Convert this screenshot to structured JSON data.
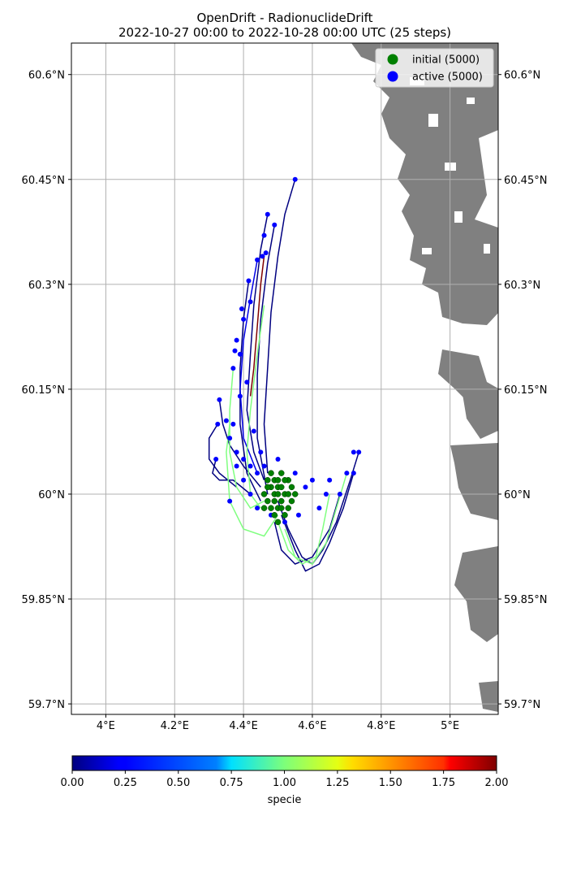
{
  "chart_data": {
    "type": "scatter",
    "title_line1": "OpenDrift - RadionuclideDrift",
    "title_line2": "2022-10-27 00:00 to 2022-10-28 00:00 UTC (25 steps)",
    "xlabel": "",
    "ylabel": "",
    "xlim": [
      3.9,
      5.14
    ],
    "ylim": [
      59.685,
      60.645
    ],
    "grid": true,
    "x_ticks": [
      {
        "value": 4.0,
        "label": "4°E"
      },
      {
        "value": 4.2,
        "label": "4.2°E"
      },
      {
        "value": 4.4,
        "label": "4.4°E"
      },
      {
        "value": 4.6,
        "label": "4.6°E"
      },
      {
        "value": 4.8,
        "label": "4.8°E"
      },
      {
        "value": 5.0,
        "label": "5°E"
      }
    ],
    "y_ticks": [
      {
        "value": 60.6,
        "label": "60.6°N"
      },
      {
        "value": 60.45,
        "label": "60.45°N"
      },
      {
        "value": 60.3,
        "label": "60.3°N"
      },
      {
        "value": 60.15,
        "label": "60.15°N"
      },
      {
        "value": 60.0,
        "label": "60°N"
      },
      {
        "value": 59.85,
        "label": "59.85°N"
      },
      {
        "value": 59.7,
        "label": "59.7°N"
      }
    ],
    "legend": {
      "placement": "top-right",
      "entries": [
        {
          "label": "initial (5000)",
          "color": "#008000"
        },
        {
          "label": "active (5000)",
          "color": "#0000ff"
        }
      ]
    },
    "series": [
      {
        "name": "initial (5000)",
        "color": "#008000",
        "points": [
          [
            4.49,
            60.0
          ],
          [
            4.5,
            60.01
          ],
          [
            4.51,
            59.99
          ],
          [
            4.48,
            60.01
          ],
          [
            4.52,
            60.0
          ],
          [
            4.5,
            59.98
          ],
          [
            4.47,
            59.99
          ],
          [
            4.53,
            60.02
          ],
          [
            4.49,
            60.02
          ],
          [
            4.51,
            60.01
          ],
          [
            4.46,
            60.0
          ],
          [
            4.54,
            59.99
          ],
          [
            4.5,
            60.02
          ],
          [
            4.48,
            59.98
          ],
          [
            4.52,
            59.97
          ],
          [
            4.49,
            59.97
          ],
          [
            4.53,
            60.0
          ],
          [
            4.47,
            60.02
          ],
          [
            4.51,
            60.03
          ],
          [
            4.5,
            59.96
          ],
          [
            4.54,
            60.01
          ],
          [
            4.46,
            59.98
          ],
          [
            4.48,
            60.03
          ],
          [
            4.52,
            60.02
          ],
          [
            4.55,
            60.0
          ],
          [
            4.5,
            60.0
          ],
          [
            4.49,
            59.99
          ],
          [
            4.51,
            59.98
          ],
          [
            4.47,
            60.01
          ],
          [
            4.53,
            59.98
          ]
        ]
      },
      {
        "name": "active (5000)",
        "color": "#0000ff",
        "points": [
          [
            4.55,
            60.45
          ],
          [
            4.47,
            60.4
          ],
          [
            4.49,
            60.385
          ],
          [
            4.46,
            60.37
          ],
          [
            4.465,
            60.345
          ],
          [
            4.44,
            60.335
          ],
          [
            4.455,
            60.34
          ],
          [
            4.415,
            60.305
          ],
          [
            4.42,
            60.275
          ],
          [
            4.395,
            60.265
          ],
          [
            4.4,
            60.25
          ],
          [
            4.38,
            60.22
          ],
          [
            4.375,
            60.205
          ],
          [
            4.39,
            60.2
          ],
          [
            4.37,
            60.18
          ],
          [
            4.33,
            60.135
          ],
          [
            4.325,
            60.1
          ],
          [
            4.35,
            60.105
          ],
          [
            4.32,
            60.05
          ],
          [
            4.36,
            60.08
          ],
          [
            4.38,
            60.06
          ],
          [
            4.4,
            60.05
          ],
          [
            4.42,
            60.04
          ],
          [
            4.44,
            60.03
          ],
          [
            4.46,
            60.04
          ],
          [
            4.5,
            60.05
          ],
          [
            4.55,
            60.03
          ],
          [
            4.6,
            60.02
          ],
          [
            4.65,
            60.02
          ],
          [
            4.7,
            60.03
          ],
          [
            4.72,
            60.06
          ],
          [
            4.735,
            60.06
          ],
          [
            4.72,
            60.03
          ],
          [
            4.68,
            60.0
          ],
          [
            4.62,
            59.98
          ],
          [
            4.56,
            59.97
          ],
          [
            4.52,
            59.96
          ],
          [
            4.48,
            59.97
          ],
          [
            4.44,
            59.98
          ],
          [
            4.42,
            60.0
          ],
          [
            4.4,
            60.02
          ],
          [
            4.38,
            60.04
          ],
          [
            4.37,
            60.1
          ],
          [
            4.39,
            60.14
          ],
          [
            4.41,
            60.16
          ],
          [
            4.36,
            59.99
          ],
          [
            4.58,
            60.01
          ],
          [
            4.64,
            60.0
          ],
          [
            4.45,
            60.06
          ],
          [
            4.43,
            60.09
          ]
        ]
      }
    ],
    "trajectories": [
      {
        "specie": 0.0,
        "path": [
          [
            4.55,
            60.45
          ],
          [
            4.52,
            60.4
          ],
          [
            4.5,
            60.34
          ],
          [
            4.48,
            60.26
          ],
          [
            4.47,
            60.18
          ],
          [
            4.46,
            60.1
          ],
          [
            4.47,
            60.03
          ]
        ]
      },
      {
        "specie": 0.0,
        "path": [
          [
            4.47,
            60.4
          ],
          [
            4.45,
            60.35
          ],
          [
            4.43,
            60.27
          ],
          [
            4.42,
            60.2
          ],
          [
            4.41,
            60.12
          ],
          [
            4.43,
            60.06
          ],
          [
            4.46,
            60.02
          ]
        ]
      },
      {
        "specie": 0.0,
        "path": [
          [
            4.49,
            60.385
          ],
          [
            4.47,
            60.33
          ],
          [
            4.45,
            60.25
          ],
          [
            4.44,
            60.17
          ],
          [
            4.44,
            60.08
          ],
          [
            4.47,
            60.0
          ]
        ]
      },
      {
        "specie": 0.0,
        "path": [
          [
            4.415,
            60.305
          ],
          [
            4.4,
            60.25
          ],
          [
            4.39,
            60.18
          ],
          [
            4.39,
            60.1
          ],
          [
            4.41,
            60.03
          ],
          [
            4.45,
            59.99
          ]
        ]
      },
      {
        "specie": 0.2,
        "path": [
          [
            4.44,
            60.335
          ],
          [
            4.42,
            60.28
          ],
          [
            4.4,
            60.22
          ],
          [
            4.39,
            60.15
          ],
          [
            4.4,
            60.08
          ],
          [
            4.44,
            60.03
          ]
        ]
      },
      {
        "specie": 0.0,
        "path": [
          [
            4.33,
            60.135
          ],
          [
            4.34,
            60.1
          ],
          [
            4.36,
            60.07
          ],
          [
            4.4,
            60.04
          ],
          [
            4.45,
            60.01
          ]
        ]
      },
      {
        "specie": 0.0,
        "path": [
          [
            4.32,
            60.05
          ],
          [
            4.31,
            60.03
          ],
          [
            4.33,
            60.02
          ],
          [
            4.37,
            60.02
          ],
          [
            4.42,
            60.0
          ]
        ]
      },
      {
        "specie": 0.0,
        "path": [
          [
            4.325,
            60.1
          ],
          [
            4.3,
            60.08
          ],
          [
            4.3,
            60.05
          ],
          [
            4.33,
            60.03
          ],
          [
            4.38,
            60.01
          ]
        ]
      },
      {
        "specie": 0.0,
        "path": [
          [
            4.735,
            60.06
          ],
          [
            4.71,
            60.02
          ],
          [
            4.67,
            59.96
          ],
          [
            4.63,
            59.92
          ],
          [
            4.6,
            59.9
          ],
          [
            4.57,
            59.91
          ],
          [
            4.53,
            59.95
          ],
          [
            4.5,
            59.99
          ]
        ]
      },
      {
        "specie": 0.0,
        "path": [
          [
            4.72,
            60.03
          ],
          [
            4.69,
            59.98
          ],
          [
            4.65,
            59.93
          ],
          [
            4.62,
            59.9
          ],
          [
            4.58,
            59.89
          ],
          [
            4.55,
            59.92
          ],
          [
            4.51,
            59.97
          ]
        ]
      },
      {
        "specie": 0.0,
        "path": [
          [
            4.68,
            60.0
          ],
          [
            4.65,
            59.95
          ],
          [
            4.6,
            59.91
          ],
          [
            4.55,
            59.9
          ],
          [
            4.51,
            59.92
          ],
          [
            4.49,
            59.96
          ]
        ]
      },
      {
        "specie": 1.0,
        "path": [
          [
            4.46,
            60.27
          ],
          [
            4.44,
            60.2
          ],
          [
            4.42,
            60.12
          ],
          [
            4.41,
            60.06
          ],
          [
            4.42,
            60.0
          ],
          [
            4.45,
            59.98
          ]
        ]
      },
      {
        "specie": 1.0,
        "path": [
          [
            4.37,
            60.18
          ],
          [
            4.36,
            60.12
          ],
          [
            4.36,
            60.06
          ],
          [
            4.38,
            60.01
          ],
          [
            4.42,
            59.98
          ],
          [
            4.46,
            59.99
          ]
        ]
      },
      {
        "specie": 1.0,
        "path": [
          [
            4.36,
            60.1
          ],
          [
            4.35,
            60.06
          ],
          [
            4.36,
            59.99
          ],
          [
            4.4,
            59.95
          ],
          [
            4.46,
            59.94
          ],
          [
            4.5,
            59.97
          ]
        ]
      },
      {
        "specie": 1.0,
        "path": [
          [
            4.65,
            60.0
          ],
          [
            4.63,
            59.95
          ],
          [
            4.61,
            59.91
          ],
          [
            4.57,
            59.9
          ],
          [
            4.53,
            59.92
          ],
          [
            4.5,
            59.96
          ]
        ]
      },
      {
        "specie": 1.0,
        "path": [
          [
            4.7,
            60.03
          ],
          [
            4.67,
            59.98
          ],
          [
            4.64,
            59.93
          ],
          [
            4.6,
            59.9
          ],
          [
            4.55,
            59.91
          ],
          [
            4.52,
            59.95
          ]
        ]
      },
      {
        "specie": 2.0,
        "path": [
          [
            4.46,
            60.34
          ],
          [
            4.45,
            60.3
          ],
          [
            4.44,
            60.24
          ],
          [
            4.43,
            60.18
          ],
          [
            4.42,
            60.14
          ]
        ]
      }
    ],
    "colorbar": {
      "label": "specie",
      "range": [
        0.0,
        2.0
      ],
      "colormap": "jet",
      "ticks": [
        "0.00",
        "0.25",
        "0.50",
        "0.75",
        "1.00",
        "1.25",
        "1.50",
        "1.75",
        "2.00"
      ]
    },
    "land_color": "#808080"
  }
}
